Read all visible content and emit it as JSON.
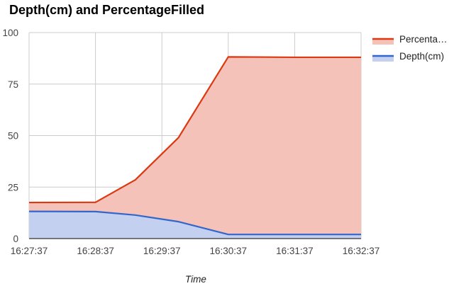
{
  "chart_data": {
    "type": "area",
    "title": "Depth(cm) and PercentageFilled",
    "xlabel": "Time",
    "ylabel": "",
    "x_ticks": [
      "16:27:37",
      "16:28:37",
      "16:29:37",
      "16:30:37",
      "16:31:37",
      "16:32:37"
    ],
    "x_tick_seconds": [
      0,
      60,
      120,
      180,
      240,
      300
    ],
    "y_ticks": [
      "0",
      "25",
      "50",
      "75",
      "100"
    ],
    "ylim": [
      0,
      100
    ],
    "grid": true,
    "legend_position": "right",
    "series": [
      {
        "name": "Percenta…",
        "color": "#dc3912",
        "fill": "#f4c2b8",
        "x_seconds": [
          0,
          60,
          96,
          135,
          180,
          240,
          300
        ],
        "values": [
          17.5,
          17.6,
          28.5,
          49.0,
          88.2,
          88.0,
          88.0
        ]
      },
      {
        "name": "Depth(cm)",
        "color": "#3366cc",
        "fill": "#c3d0f0",
        "x_seconds": [
          0,
          60,
          96,
          135,
          180,
          240,
          300
        ],
        "values": [
          13.2,
          13.1,
          11.4,
          8.2,
          2.0,
          2.0,
          2.0
        ]
      }
    ]
  }
}
